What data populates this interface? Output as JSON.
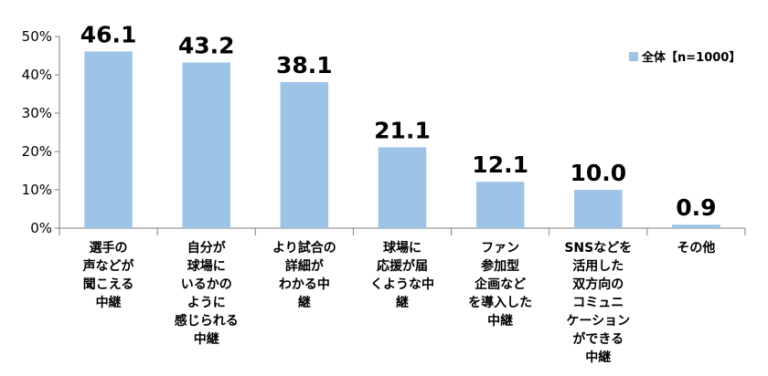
{
  "chart_data": {
    "type": "bar",
    "categories": [
      [
        "選手の",
        "声などが",
        "聞こえる",
        "中継"
      ],
      [
        "自分が",
        "球場に",
        "いるかの",
        "ように",
        "感じられる",
        "中継"
      ],
      [
        "より試合の",
        "詳細が",
        "わかる中",
        "継"
      ],
      [
        "球場に",
        "応援が届",
        "くような中",
        "継"
      ],
      [
        "ファン",
        "参加型",
        "企画など",
        "を導入した",
        "中継"
      ],
      [
        "SNSなどを",
        "活用した",
        "双方向の",
        "コミュニ",
        "ケーション",
        "ができる",
        "中継"
      ],
      [
        "その他"
      ]
    ],
    "series": [
      {
        "name": "全体【n=1000】",
        "values": [
          46.1,
          43.2,
          38.1,
          21.1,
          12.1,
          10.0,
          0.9
        ],
        "labels": [
          "46.1",
          "43.2",
          "38.1",
          "21.1",
          "12.1",
          "10.0",
          "0.9"
        ]
      }
    ],
    "ylim": [
      0,
      50
    ],
    "yticks": [
      "0%",
      "10%",
      "20%",
      "30%",
      "40%",
      "50%"
    ],
    "legend_position": "top-right",
    "colors": {
      "bar": "#9DC3E6",
      "axis": "#7F7F7F"
    }
  }
}
